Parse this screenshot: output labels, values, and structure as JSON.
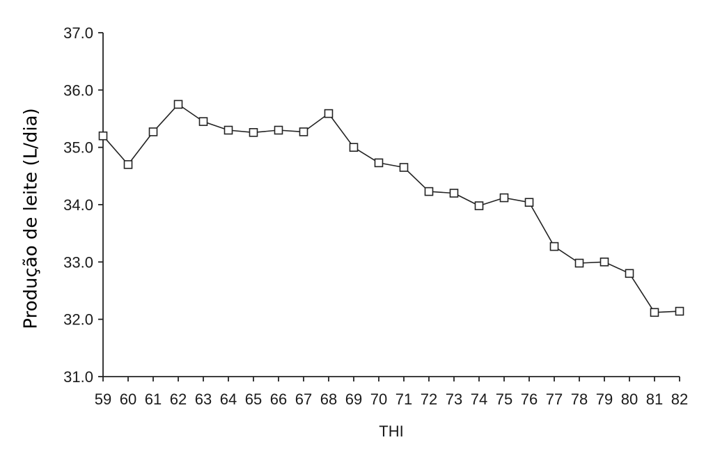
{
  "chart_data": {
    "type": "line",
    "title": "",
    "xlabel": "THI",
    "ylabel": "Produção de leite (L/dia)",
    "x": [
      59,
      60,
      61,
      62,
      63,
      64,
      65,
      66,
      67,
      68,
      69,
      70,
      71,
      72,
      73,
      74,
      75,
      76,
      77,
      78,
      79,
      80,
      81,
      82
    ],
    "x_tick_labels": [
      "59",
      "60",
      "61",
      "62",
      "63",
      "64",
      "65",
      "66",
      "67",
      "68",
      "69",
      "70",
      "71",
      "72",
      "73",
      "74",
      "75",
      "76",
      "77",
      "78",
      "79",
      "80",
      "81",
      "82"
    ],
    "y_tick_labels": [
      "31.0",
      "32.0",
      "33.0",
      "34.0",
      "35.0",
      "36.0",
      "37.0"
    ],
    "y_ticks": [
      31,
      32,
      33,
      34,
      35,
      36,
      37
    ],
    "ylim": [
      31,
      37
    ],
    "xlim": [
      59,
      82
    ],
    "grid": false,
    "marker": "open-square",
    "series": [
      {
        "values": [
          35.2,
          34.7,
          35.27,
          35.75,
          35.45,
          35.3,
          35.26,
          35.3,
          35.27,
          35.59,
          35.0,
          34.73,
          34.65,
          34.23,
          34.2,
          33.98,
          34.12,
          34.04,
          33.27,
          32.98,
          33.0,
          32.8,
          32.12,
          32.14
        ],
        "color": "#222222"
      }
    ]
  }
}
